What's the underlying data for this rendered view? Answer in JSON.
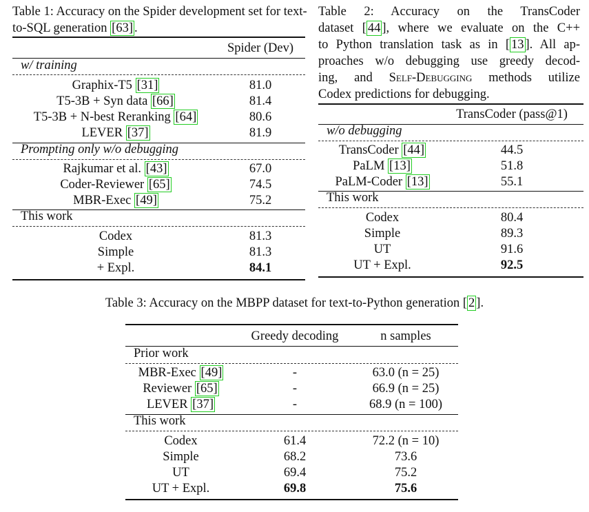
{
  "table1": {
    "caption": {
      "text": "Table 1: Accuracy on the Spider development set for text-to-SQL generation ",
      "cite": "63",
      "end": "."
    },
    "column_header": "Spider (Dev)",
    "sections": [
      {
        "heading": "w/ training",
        "rows": [
          {
            "name": "Graphix-T5 ",
            "cite": "31",
            "value": "81.0"
          },
          {
            "name": "T5-3B + Syn data ",
            "cite": "66",
            "value": "81.4"
          },
          {
            "name": "T5-3B + N-best Reranking ",
            "cite": "64",
            "value": "80.6"
          },
          {
            "name": "LEVER ",
            "cite": "37",
            "value": "81.9"
          }
        ]
      },
      {
        "heading": "Prompting only w/o debugging",
        "rows": [
          {
            "name": "Rajkumar et al. ",
            "cite": "43",
            "value": "67.0"
          },
          {
            "name": "Coder-Reviewer ",
            "cite": "65",
            "value": "74.5"
          },
          {
            "name": "MBR-Exec ",
            "cite": "49",
            "value": "75.2"
          }
        ]
      },
      {
        "heading": "This work",
        "rows": [
          {
            "name": "Codex",
            "cite": "",
            "value": "81.3"
          },
          {
            "name": "Simple",
            "cite": "",
            "value": "81.3"
          },
          {
            "name": "+ Expl.",
            "cite": "",
            "value": "84.1"
          }
        ]
      }
    ]
  },
  "table2": {
    "caption_lines": [
      "Table 2: Accuracy on the TransCoder",
      "dataset [",
      "44",
      "], where we evaluate on the C++",
      "to Python translation task as in [",
      "13",
      "]. All ap-",
      "proaches w/o debugging use greedy decod-",
      "ing, and ",
      "Self-Debugging",
      " methods utilize",
      "Codex predictions for debugging."
    ],
    "column_header": "TransCoder (pass@1)",
    "sections": [
      {
        "heading": "w/o debugging",
        "rows": [
          {
            "name": "TransCoder ",
            "cite": "44",
            "value": "44.5"
          },
          {
            "name": "PaLM ",
            "cite": "13",
            "value": "51.8"
          },
          {
            "name": "PaLM-Coder ",
            "cite": "13",
            "value": "55.1"
          }
        ]
      },
      {
        "heading": "This work",
        "rows": [
          {
            "name": "Codex",
            "cite": "",
            "value": "80.4"
          },
          {
            "name": "Simple",
            "cite": "",
            "value": "89.3"
          },
          {
            "name": "UT",
            "cite": "",
            "value": "91.6"
          },
          {
            "name": "UT + Expl.",
            "cite": "",
            "value": "92.5"
          }
        ]
      }
    ]
  },
  "table3": {
    "caption": {
      "text": "Table 3: Accuracy on the MBPP dataset for text-to-Python generation [",
      "cite": "2",
      "end": "]."
    },
    "column_headers": [
      "Greedy decoding",
      "n samples"
    ],
    "sections": [
      {
        "heading": "Prior work",
        "rows": [
          {
            "name": "MBR-Exec ",
            "cite": "49",
            "greedy": "-",
            "samples": "63.0 (n = 25)"
          },
          {
            "name": "Reviewer ",
            "cite": "65",
            "greedy": "-",
            "samples": "66.9 (n = 25)"
          },
          {
            "name": "LEVER ",
            "cite": "37",
            "greedy": "-",
            "samples": "68.9 (n = 100)"
          }
        ]
      },
      {
        "heading": "This work",
        "rows": [
          {
            "name": "Codex",
            "cite": "",
            "greedy": "61.4",
            "samples": "72.2 (n = 10)"
          },
          {
            "name": "Simple",
            "cite": "",
            "greedy": "68.2",
            "samples": "73.6"
          },
          {
            "name": "UT",
            "cite": "",
            "greedy": "69.4",
            "samples": "75.2"
          },
          {
            "name": "UT + Expl.",
            "cite": "",
            "greedy": "69.8",
            "samples": "75.6"
          }
        ]
      }
    ]
  }
}
